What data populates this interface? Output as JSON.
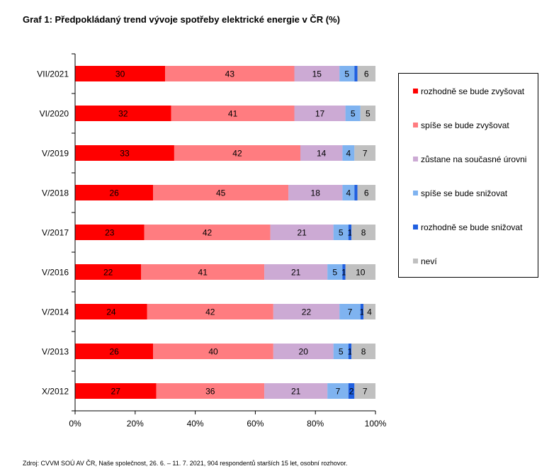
{
  "title": "Graf 1: Předpokládaný trend vývoje spotřeby elektrické energie v ČR (%)",
  "source": "Zdroj: CVVM SOÚ AV ČR, Naše společnost, 26. 6. – 11. 7. 2021, 904 respondentů starších 15 let, osobní rozhovor.",
  "chart_data": {
    "type": "bar",
    "orientation": "horizontal",
    "stacked": true,
    "categories": [
      "VII/2021",
      "VI/2020",
      "V/2019",
      "V/2018",
      "V/2017",
      "V/2016",
      "V/2014",
      "V/2013",
      "X/2012"
    ],
    "series": [
      {
        "name": "rozhodně se bude zvyšovat",
        "color": "#ff0000",
        "values": [
          30,
          32,
          33,
          26,
          23,
          22,
          24,
          26,
          27
        ]
      },
      {
        "name": "spíše se bude zvyšovat",
        "color": "#ff7c80",
        "values": [
          43,
          41,
          42,
          45,
          42,
          41,
          42,
          40,
          36
        ]
      },
      {
        "name": "zůstane na současné úrovni",
        "color": "#ccaad4",
        "values": [
          15,
          17,
          14,
          18,
          21,
          21,
          22,
          20,
          21
        ]
      },
      {
        "name": "spíše se bude snižovat",
        "color": "#7fb3f0",
        "values": [
          5,
          5,
          4,
          4,
          5,
          5,
          7,
          5,
          7
        ]
      },
      {
        "name": "rozhodně se bude snižovat",
        "color": "#1f5fe0",
        "values": [
          1,
          0,
          0,
          1,
          1,
          1,
          1,
          1,
          2
        ]
      },
      {
        "name": "neví",
        "color": "#c0c0c0",
        "values": [
          6,
          5,
          7,
          6,
          8,
          10,
          4,
          8,
          7
        ]
      }
    ],
    "labels": [
      [
        "30",
        "43",
        "15",
        "5",
        "",
        "6"
      ],
      [
        "32",
        "41",
        "17",
        "5",
        "",
        "5"
      ],
      [
        "33",
        "42",
        "14",
        "4",
        "",
        "7"
      ],
      [
        "26",
        "45",
        "18",
        "4",
        "",
        "6"
      ],
      [
        "23",
        "42",
        "21",
        "5",
        "1",
        "8"
      ],
      [
        "22",
        "41",
        "21",
        "5",
        "1",
        "10"
      ],
      [
        "24",
        "42",
        "22",
        "7",
        "1",
        "4"
      ],
      [
        "26",
        "40",
        "20",
        "5",
        "1",
        "8"
      ],
      [
        "27",
        "36",
        "21",
        "7",
        "2",
        "7"
      ]
    ],
    "x_ticks": [
      "0%",
      "20%",
      "40%",
      "60%",
      "80%",
      "100%"
    ],
    "xlim": [
      0,
      100
    ],
    "grid": false,
    "legend_position": "right"
  }
}
